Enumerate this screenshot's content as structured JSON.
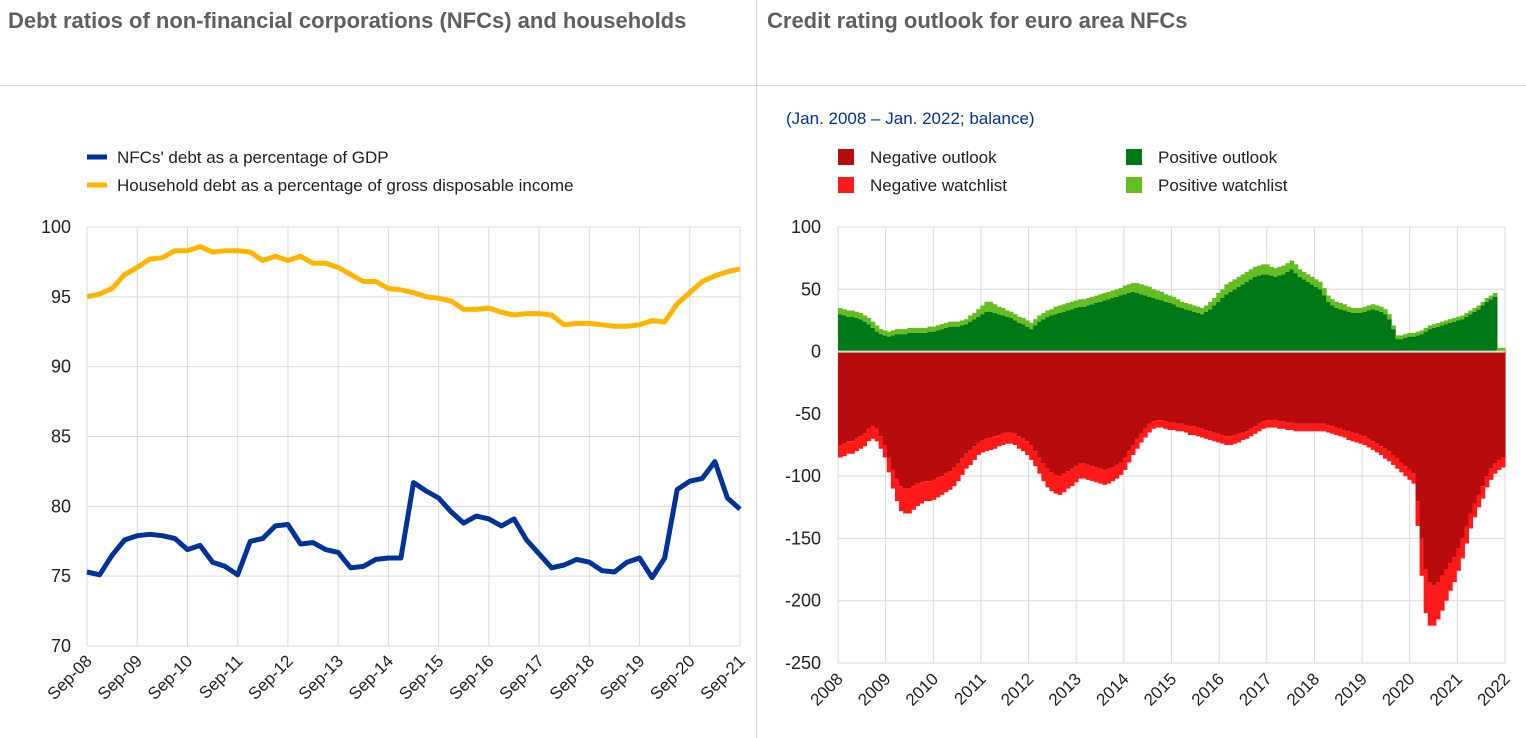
{
  "left_title": "Debt ratios of non-financial corporations (NFCs) and households",
  "right_title": "Credit rating outlook for euro area NFCs",
  "colors": {
    "nfc": "#003299",
    "household": "#ffb400",
    "negative_outlook": "#b80c0c",
    "negative_watchlist": "#ff1a1a",
    "positive_outlook": "#007815",
    "positive_watchlist": "#64bd21"
  },
  "chart_data": [
    {
      "type": "line",
      "title": "Debt ratios of non-financial corporations (NFCs) and households",
      "x_tick_labels": [
        "Sep-08",
        "Sep-09",
        "Sep-10",
        "Sep-11",
        "Sep-12",
        "Sep-13",
        "Sep-14",
        "Sep-15",
        "Sep-16",
        "Sep-17",
        "Sep-18",
        "Sep-19",
        "Sep-20",
        "Sep-21"
      ],
      "y_ticks": [
        70,
        75,
        80,
        85,
        90,
        95,
        100
      ],
      "ylim": [
        70,
        100
      ],
      "grid": true,
      "legend_position": "top-left",
      "series": [
        {
          "name": "NFCs' debt as a percentage of GDP",
          "color": "#003299",
          "values": [
            75.3,
            75.1,
            76.5,
            77.6,
            77.9,
            78.0,
            77.9,
            77.7,
            76.9,
            77.2,
            76.0,
            75.7,
            75.1,
            77.5,
            77.7,
            78.6,
            78.7,
            77.3,
            77.4,
            76.9,
            76.7,
            75.6,
            75.7,
            76.2,
            76.3,
            76.3,
            81.7,
            81.1,
            80.6,
            79.6,
            78.8,
            79.3,
            79.1,
            78.6,
            79.1,
            77.6,
            76.6,
            75.6,
            75.8,
            76.2,
            76.0,
            75.4,
            75.3,
            76.0,
            76.3,
            74.9,
            76.3,
            81.2,
            81.8,
            82.0,
            83.2,
            80.6,
            79.8
          ]
        },
        {
          "name": "Household debt as a percentage of gross disposable income",
          "color": "#ffb400",
          "values": [
            95.0,
            95.2,
            95.6,
            96.6,
            97.1,
            97.7,
            97.8,
            98.3,
            98.3,
            98.6,
            98.2,
            98.3,
            98.3,
            98.2,
            97.6,
            97.9,
            97.6,
            97.9,
            97.4,
            97.4,
            97.1,
            96.6,
            96.1,
            96.1,
            95.6,
            95.5,
            95.3,
            95.0,
            94.9,
            94.7,
            94.1,
            94.1,
            94.2,
            93.9,
            93.7,
            93.8,
            93.8,
            93.7,
            93.0,
            93.1,
            93.1,
            93.0,
            92.9,
            92.9,
            93.0,
            93.3,
            93.2,
            94.5,
            95.3,
            96.1,
            96.5,
            96.8,
            97.0
          ]
        }
      ]
    },
    {
      "type": "bar",
      "title": "Credit rating outlook for euro area NFCs",
      "subtitle": "(Jan. 2008 – Jan. 2022; balance)",
      "x_tick_labels": [
        "2008",
        "2009",
        "2010",
        "2011",
        "2012",
        "2013",
        "2014",
        "2015",
        "2016",
        "2017",
        "2018",
        "2019",
        "2020",
        "2021",
        "2022"
      ],
      "x_range": [
        "Jan. 2008",
        "Jan. 2022"
      ],
      "y_ticks": [
        -250,
        -200,
        -150,
        -100,
        -50,
        0,
        50,
        100
      ],
      "ylim": [
        -250,
        100
      ],
      "grid": true,
      "stacked": true,
      "legend_position": "top",
      "frequency": "monthly",
      "series": [
        {
          "name": "Negative outlook",
          "color": "#b80c0c",
          "values": [
            -75,
            -74,
            -72,
            -72,
            -70,
            -68,
            -66,
            -62,
            -60,
            -62,
            -68,
            -75,
            -85,
            -95,
            -102,
            -108,
            -110,
            -110,
            -108,
            -106,
            -105,
            -104,
            -104,
            -103,
            -101,
            -100,
            -98,
            -96,
            -93,
            -90,
            -86,
            -82,
            -79,
            -76,
            -73,
            -71,
            -70,
            -69,
            -68,
            -67,
            -66,
            -65,
            -65,
            -66,
            -68,
            -70,
            -72,
            -75,
            -80,
            -85,
            -90,
            -94,
            -97,
            -99,
            -100,
            -98,
            -96,
            -94,
            -92,
            -90,
            -90,
            -91,
            -92,
            -93,
            -94,
            -95,
            -94,
            -93,
            -91,
            -89,
            -85,
            -80,
            -75,
            -70,
            -66,
            -62,
            -58,
            -56,
            -55,
            -55,
            -56,
            -57,
            -57,
            -58,
            -58,
            -59,
            -60,
            -60,
            -61,
            -62,
            -63,
            -64,
            -65,
            -66,
            -67,
            -68,
            -68,
            -67,
            -66,
            -65,
            -64,
            -62,
            -60,
            -58,
            -56,
            -55,
            -55,
            -55,
            -56,
            -56,
            -57,
            -57,
            -58,
            -58,
            -58,
            -58,
            -58,
            -58,
            -58,
            -58,
            -59,
            -60,
            -61,
            -62,
            -63,
            -64,
            -65,
            -66,
            -67,
            -68,
            -70,
            -72,
            -74,
            -76,
            -78,
            -80,
            -83,
            -86,
            -89,
            -92,
            -95,
            -98,
            -120,
            -150,
            -175,
            -185,
            -188,
            -185,
            -180,
            -175,
            -170,
            -165,
            -158,
            -150,
            -140,
            -130,
            -122,
            -115,
            -108,
            -100,
            -94,
            -90,
            -87,
            -85
          ]
        },
        {
          "name": "Negative watchlist",
          "color": "#ff1a1a",
          "values": [
            -10,
            -10,
            -10,
            -10,
            -10,
            -10,
            -10,
            -10,
            -10,
            -10,
            -10,
            -10,
            -12,
            -15,
            -18,
            -20,
            -20,
            -20,
            -19,
            -18,
            -17,
            -16,
            -16,
            -16,
            -16,
            -15,
            -15,
            -15,
            -15,
            -14,
            -13,
            -12,
            -12,
            -11,
            -10,
            -10,
            -10,
            -10,
            -10,
            -9,
            -9,
            -9,
            -9,
            -9,
            -10,
            -10,
            -11,
            -12,
            -12,
            -13,
            -14,
            -15,
            -15,
            -15,
            -15,
            -15,
            -14,
            -14,
            -13,
            -12,
            -12,
            -12,
            -12,
            -12,
            -12,
            -12,
            -12,
            -11,
            -11,
            -10,
            -10,
            -9,
            -8,
            -8,
            -7,
            -7,
            -7,
            -6,
            -6,
            -6,
            -6,
            -6,
            -6,
            -6,
            -6,
            -6,
            -7,
            -7,
            -7,
            -7,
            -7,
            -7,
            -7,
            -7,
            -7,
            -7,
            -7,
            -7,
            -7,
            -6,
            -6,
            -6,
            -6,
            -6,
            -6,
            -6,
            -6,
            -6,
            -6,
            -6,
            -6,
            -6,
            -6,
            -6,
            -6,
            -6,
            -6,
            -6,
            -6,
            -6,
            -6,
            -6,
            -6,
            -6,
            -6,
            -7,
            -7,
            -7,
            -7,
            -7,
            -7,
            -7,
            -7,
            -7,
            -8,
            -8,
            -8,
            -8,
            -8,
            -8,
            -8,
            -8,
            -20,
            -30,
            -35,
            -35,
            -32,
            -30,
            -28,
            -25,
            -22,
            -20,
            -18,
            -16,
            -14,
            -12,
            -11,
            -10,
            -10,
            -9,
            -9,
            -8,
            -8,
            -8
          ]
        },
        {
          "name": "Positive outlook",
          "color": "#007815",
          "values": [
            30,
            29,
            28,
            28,
            27,
            26,
            24,
            22,
            19,
            16,
            14,
            13,
            12,
            13,
            14,
            14,
            14,
            15,
            15,
            15,
            15,
            15,
            16,
            16,
            17,
            18,
            19,
            20,
            20,
            20,
            21,
            22,
            24,
            26,
            28,
            30,
            32,
            32,
            31,
            30,
            29,
            28,
            27,
            25,
            23,
            22,
            20,
            18,
            21,
            24,
            26,
            28,
            29,
            30,
            31,
            32,
            33,
            34,
            35,
            36,
            36,
            37,
            38,
            39,
            40,
            41,
            42,
            43,
            44,
            45,
            46,
            47,
            48,
            47,
            46,
            45,
            44,
            43,
            42,
            41,
            40,
            39,
            38,
            36,
            35,
            34,
            33,
            32,
            31,
            30,
            32,
            34,
            37,
            40,
            43,
            46,
            48,
            50,
            52,
            54,
            56,
            58,
            60,
            61,
            62,
            62,
            61,
            60,
            61,
            62,
            64,
            66,
            63,
            60,
            58,
            56,
            54,
            52,
            50,
            45,
            40,
            37,
            35,
            34,
            33,
            32,
            31,
            31,
            31,
            32,
            33,
            34,
            33,
            32,
            30,
            26,
            18,
            10,
            10,
            11,
            12,
            12,
            13,
            14,
            16,
            18,
            19,
            20,
            21,
            22,
            23,
            24,
            25,
            26,
            28,
            30,
            32,
            34,
            37,
            40,
            42,
            44
          ]
        },
        {
          "name": "Positive watchlist",
          "color": "#64bd21",
          "values": [
            5,
            5,
            5,
            5,
            5,
            5,
            5,
            5,
            5,
            5,
            4,
            4,
            4,
            4,
            4,
            4,
            4,
            4,
            4,
            4,
            4,
            4,
            4,
            4,
            4,
            4,
            4,
            4,
            4,
            4,
            4,
            4,
            5,
            5,
            6,
            7,
            8,
            8,
            7,
            6,
            6,
            5,
            5,
            5,
            5,
            5,
            5,
            5,
            5,
            5,
            5,
            5,
            5,
            6,
            6,
            6,
            6,
            6,
            6,
            6,
            6,
            6,
            6,
            6,
            6,
            6,
            6,
            6,
            6,
            6,
            7,
            7,
            7,
            8,
            8,
            8,
            8,
            7,
            7,
            7,
            6,
            6,
            6,
            6,
            5,
            5,
            5,
            5,
            5,
            5,
            5,
            6,
            6,
            7,
            7,
            8,
            8,
            8,
            8,
            8,
            8,
            8,
            8,
            8,
            8,
            8,
            7,
            7,
            7,
            7,
            7,
            7,
            7,
            6,
            6,
            6,
            6,
            6,
            6,
            6,
            5,
            5,
            5,
            5,
            5,
            4,
            4,
            4,
            4,
            4,
            4,
            4,
            4,
            4,
            4,
            4,
            3,
            3,
            3,
            3,
            3,
            3,
            3,
            3,
            3,
            3,
            3,
            3,
            3,
            3,
            3,
            3,
            3,
            3,
            3,
            3,
            3,
            3,
            3,
            3,
            3,
            3,
            3,
            3,
            3,
            3
          ]
        }
      ]
    }
  ]
}
